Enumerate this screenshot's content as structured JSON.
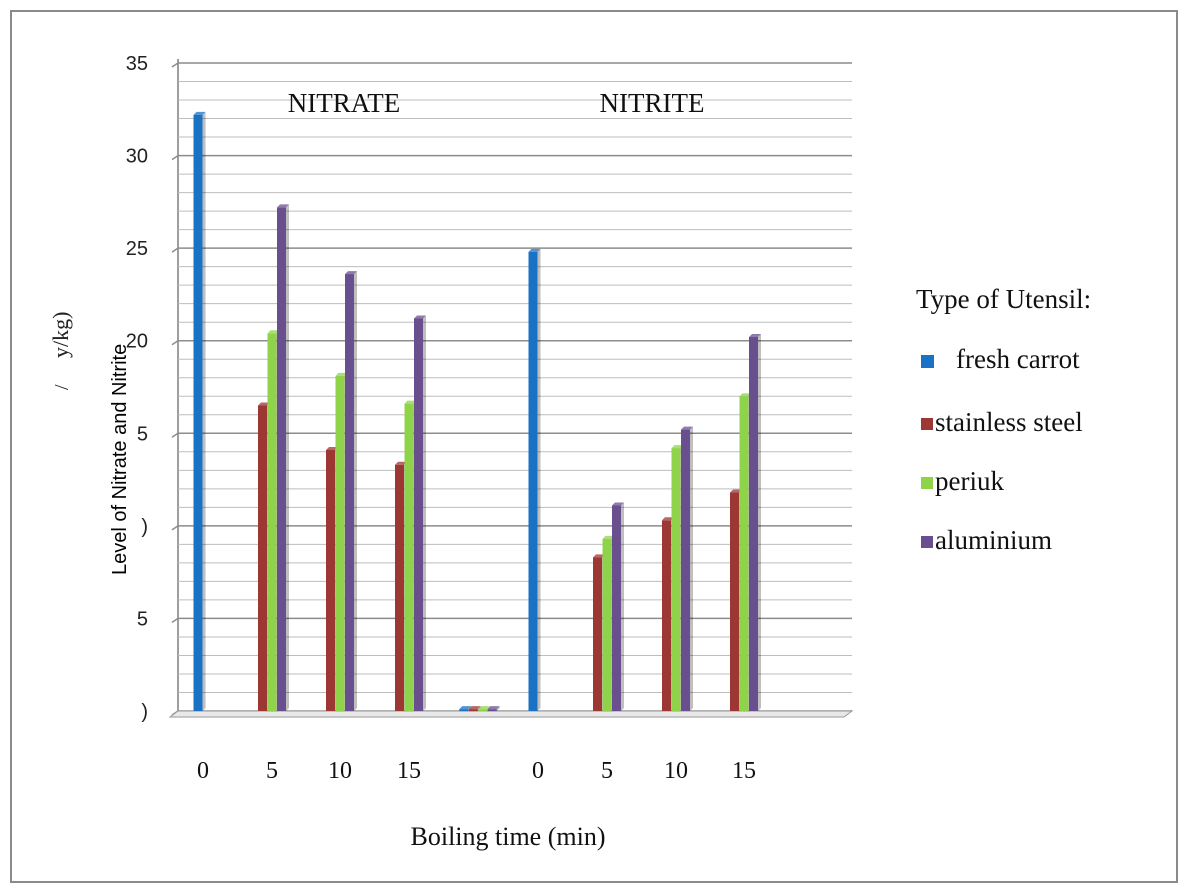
{
  "chart_data": {
    "type": "bar",
    "ylim": [
      0,
      35
    ],
    "yticks": [
      "35",
      "30",
      "25",
      "20",
      "5",
      ")",
      "5",
      ")"
    ],
    "ytick_values": [
      35,
      30,
      25,
      20,
      15,
      10,
      5,
      0
    ],
    "ylabel_line1": "Level of  Nitrate  and Nitrite",
    "ylabel_line2": "/ ",
    "ylabel_line2b": "y/kg)",
    "xlabel": "Boiling time (min)",
    "groups": [
      {
        "label": "NITRATE",
        "categories": [
          "0",
          "5",
          "10",
          "15"
        ],
        "series": [
          {
            "name": "fresh carrot",
            "values": [
              32.2,
              null,
              null,
              null
            ]
          },
          {
            "name": "stainless steel",
            "values": [
              null,
              16.5,
              14.1,
              13.3
            ]
          },
          {
            "name": "periuk",
            "values": [
              null,
              20.4,
              18.1,
              16.6
            ]
          },
          {
            "name": "aluminium",
            "values": [
              null,
              27.2,
              23.6,
              21.2
            ]
          }
        ]
      },
      {
        "label": "",
        "categories": [
          ""
        ],
        "series": [
          {
            "name": "fresh carrot",
            "values": [
              0.1
            ]
          },
          {
            "name": "stainless steel",
            "values": [
              0.1
            ]
          },
          {
            "name": "periuk",
            "values": [
              0.1
            ]
          },
          {
            "name": "aluminium",
            "values": [
              0.1
            ]
          }
        ]
      },
      {
        "label": "NITRITE",
        "categories": [
          "0",
          "5",
          "10",
          "15"
        ],
        "series": [
          {
            "name": "fresh carrot",
            "values": [
              24.8,
              null,
              null,
              null
            ]
          },
          {
            "name": "stainless steel",
            "values": [
              null,
              8.3,
              10.3,
              11.8
            ]
          },
          {
            "name": "periuk",
            "values": [
              null,
              9.3,
              14.2,
              17.0
            ]
          },
          {
            "name": "aluminium",
            "values": [
              null,
              11.1,
              15.2,
              20.2
            ]
          }
        ]
      }
    ],
    "legend_title": "Type of Utensil:",
    "legend": [
      {
        "name": "fresh carrot",
        "color": "#1a72c4"
      },
      {
        "name": "stainless steel",
        "color": "#9c3733"
      },
      {
        "name": "periuk",
        "color": "#8fd34a"
      },
      {
        "name": "aluminium",
        "color": "#6a4f8f"
      }
    ],
    "legend_placement": "right",
    "grid": true
  }
}
